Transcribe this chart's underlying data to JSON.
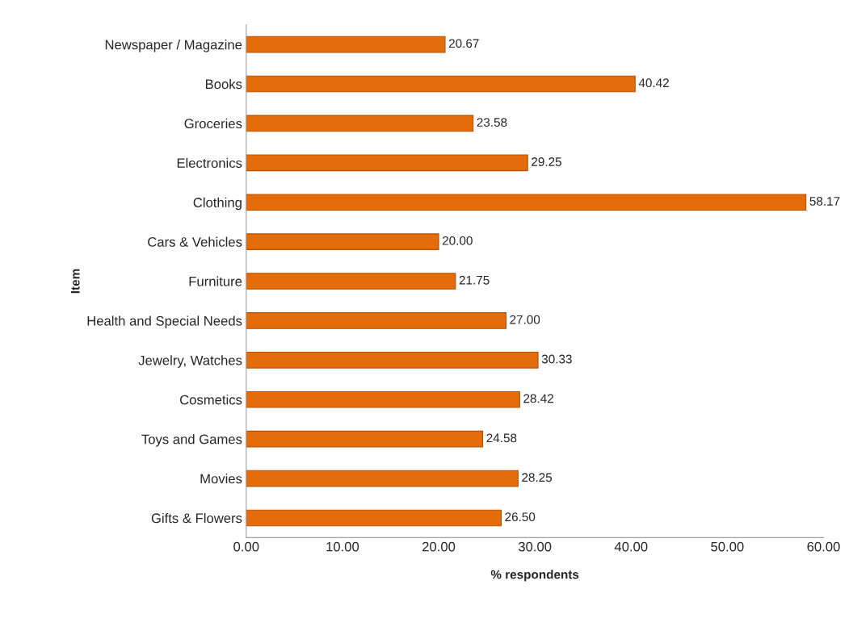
{
  "chart_data": {
    "type": "bar",
    "orientation": "horizontal",
    "xlabel": "% respondents",
    "ylabel": "Item",
    "categories": [
      "Newspaper / Magazine",
      "Books",
      "Groceries",
      "Electronics",
      "Clothing",
      "Cars & Vehicles",
      "Furniture",
      "Health and Special Needs",
      "Jewelry, Watches",
      "Cosmetics",
      "Toys and Games",
      "Movies",
      "Gifts & Flowers"
    ],
    "values": [
      20.67,
      40.42,
      23.58,
      29.25,
      58.17,
      20.0,
      21.75,
      27.0,
      30.33,
      28.42,
      24.58,
      28.25,
      26.5
    ],
    "value_labels": [
      "20.67",
      "40.42",
      "23.58",
      "29.25",
      "58.17",
      "20.00",
      "21.75",
      "27.00",
      "30.33",
      "28.42",
      "24.58",
      "28.25",
      "26.50"
    ],
    "color": "#e46c0a",
    "xlim": [
      0,
      60
    ],
    "xticks": [
      {
        "value": 0,
        "label": "0.00"
      },
      {
        "value": 10,
        "label": "10.00"
      },
      {
        "value": 20,
        "label": "20.00"
      },
      {
        "value": 30,
        "label": "30.00"
      },
      {
        "value": 40,
        "label": "40.00"
      },
      {
        "value": 50,
        "label": "50.00"
      },
      {
        "value": 60,
        "label": "60.00"
      }
    ],
    "grid": false,
    "legend": false
  }
}
